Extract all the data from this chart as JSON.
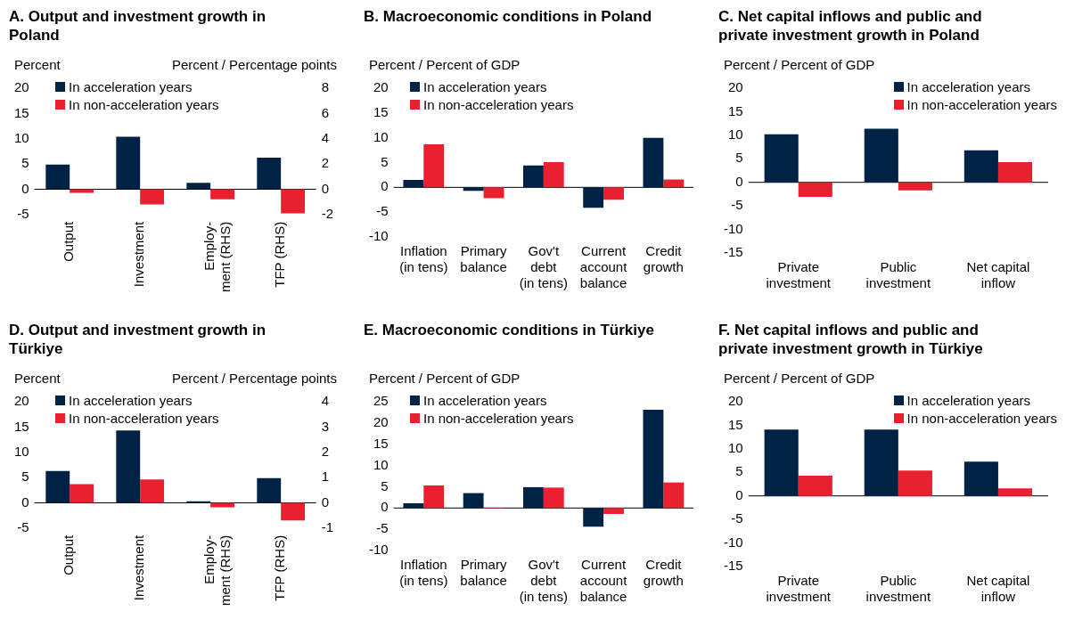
{
  "chart_data": [
    {
      "type": "bar",
      "title": "A. Output and investment growth in Poland",
      "ylabel": "Percent",
      "y2label": "Percent / Percentage points",
      "categories": [
        "Output",
        "Investment",
        "Employ-\nment (RHS)",
        "TFP (RHS)"
      ],
      "series": [
        {
          "name": "In acceleration years",
          "color": "#002345",
          "values": [
            4.9,
            10.4,
            null,
            null
          ],
          "axis": "y"
        },
        {
          "name": "In non-acceleration years",
          "color": "#e8202f",
          "values": [
            -0.7,
            -3.0,
            null,
            null
          ],
          "axis": "y"
        },
        {
          "color": "#002345",
          "values": [
            null,
            null,
            0.5,
            2.5
          ],
          "axis": "y2"
        },
        {
          "color": "#e8202f",
          "values": [
            null,
            null,
            -0.8,
            -1.9
          ],
          "axis": "y2"
        }
      ],
      "ylim": [
        -5,
        20
      ],
      "yticks": [
        -5,
        0,
        5,
        10,
        15,
        20
      ],
      "y2lim": [
        -2,
        8
      ],
      "y2ticks": [
        -2,
        0,
        2,
        4,
        6,
        8
      ],
      "legend": "top left"
    },
    {
      "type": "bar",
      "title": "B. Macroeconomic conditions in Poland",
      "ylabel": "Percent / Percent of GDP",
      "categories": [
        "Inflation\n(in tens)",
        "Primary\nbalance",
        "Gov't\ndebt\n(in tens)",
        "Current\naccount\nbalance",
        "Credit\ngrowth"
      ],
      "series": [
        {
          "name": "In acceleration years",
          "color": "#002345",
          "values": [
            1.5,
            -0.7,
            4.4,
            -4.1,
            10.0
          ]
        },
        {
          "name": "In non-acceleration years",
          "color": "#e8202f",
          "values": [
            8.7,
            -2.2,
            5.1,
            -2.5,
            1.6
          ]
        }
      ],
      "ylim": [
        -10,
        20
      ],
      "yticks": [
        -10,
        -5,
        0,
        5,
        10,
        15,
        20
      ],
      "legend": "top left"
    },
    {
      "type": "bar",
      "title": "C. Net capital inflows and public and private investment growth in Poland",
      "ylabel": "Percent / Percent of GDP",
      "categories": [
        "Private\ninvestment",
        "Public\ninvestment",
        "Net capital\ninflow"
      ],
      "series": [
        {
          "name": "In acceleration years",
          "color": "#002345",
          "values": [
            10.2,
            11.4,
            6.8
          ]
        },
        {
          "name": "In non-acceleration years",
          "color": "#e8202f",
          "values": [
            -3.1,
            -1.7,
            4.3
          ]
        }
      ],
      "ylim": [
        -15,
        20
      ],
      "yticks": [
        -15,
        -10,
        -5,
        0,
        5,
        10,
        15,
        20
      ],
      "legend": "top right"
    },
    {
      "type": "bar",
      "title": "D. Output and investment growth in Türkiye",
      "ylabel": "Percent",
      "y2label": "Percent / Percentage points",
      "categories": [
        "Output",
        "Investment",
        "Employ-\nment (RHS)",
        "TFP (RHS)"
      ],
      "series": [
        {
          "name": "In acceleration years",
          "color": "#002345",
          "values": [
            6.3,
            14.3,
            null,
            null
          ],
          "axis": "y"
        },
        {
          "name": "In non-acceleration years",
          "color": "#e8202f",
          "values": [
            3.7,
            4.6,
            null,
            null
          ],
          "axis": "y"
        },
        {
          "color": "#002345",
          "values": [
            null,
            null,
            0.06,
            0.98
          ],
          "axis": "y2"
        },
        {
          "color": "#e8202f",
          "values": [
            null,
            null,
            -0.18,
            -0.7
          ],
          "axis": "y2"
        }
      ],
      "ylim": [
        -5,
        20
      ],
      "yticks": [
        -5,
        0,
        5,
        10,
        15,
        20
      ],
      "y2lim": [
        -1,
        4
      ],
      "y2ticks": [
        -1,
        0,
        1,
        2,
        3,
        4
      ],
      "legend": "top left"
    },
    {
      "type": "bar",
      "title": "E. Macroeconomic conditions in Türkiye",
      "ylabel": "Percent / Percent of GDP",
      "categories": [
        "Inflation\n(in tens)",
        "Primary\nbalance",
        "Gov't\ndebt\n(in tens)",
        "Current\naccount\nbalance",
        "Credit\ngrowth"
      ],
      "series": [
        {
          "name": "In acceleration years",
          "color": "#002345",
          "values": [
            1.1,
            3.5,
            4.9,
            -4.4,
            23.1
          ]
        },
        {
          "name": "In non-acceleration years",
          "color": "#e8202f",
          "values": [
            5.3,
            -0.1,
            4.8,
            -1.4,
            6.0
          ]
        }
      ],
      "ylim": [
        -10,
        25
      ],
      "yticks": [
        -10,
        -5,
        0,
        5,
        10,
        15,
        20,
        25
      ],
      "legend": "top left"
    },
    {
      "type": "bar",
      "title": "F. Net capital inflows and public and private investment growth in Türkiye",
      "ylabel": "Percent / Percent of GDP",
      "categories": [
        "Private\ninvestment",
        "Public\ninvestment",
        "Net capital\ninflow"
      ],
      "series": [
        {
          "name": "In acceleration years",
          "color": "#002345",
          "values": [
            14.1,
            14.1,
            7.3
          ]
        },
        {
          "name": "In non-acceleration years",
          "color": "#e8202f",
          "values": [
            4.3,
            5.4,
            1.6
          ]
        }
      ],
      "ylim": [
        -15,
        20
      ],
      "yticks": [
        -15,
        -10,
        -5,
        0,
        5,
        10,
        15,
        20
      ],
      "legend": "top right"
    }
  ]
}
